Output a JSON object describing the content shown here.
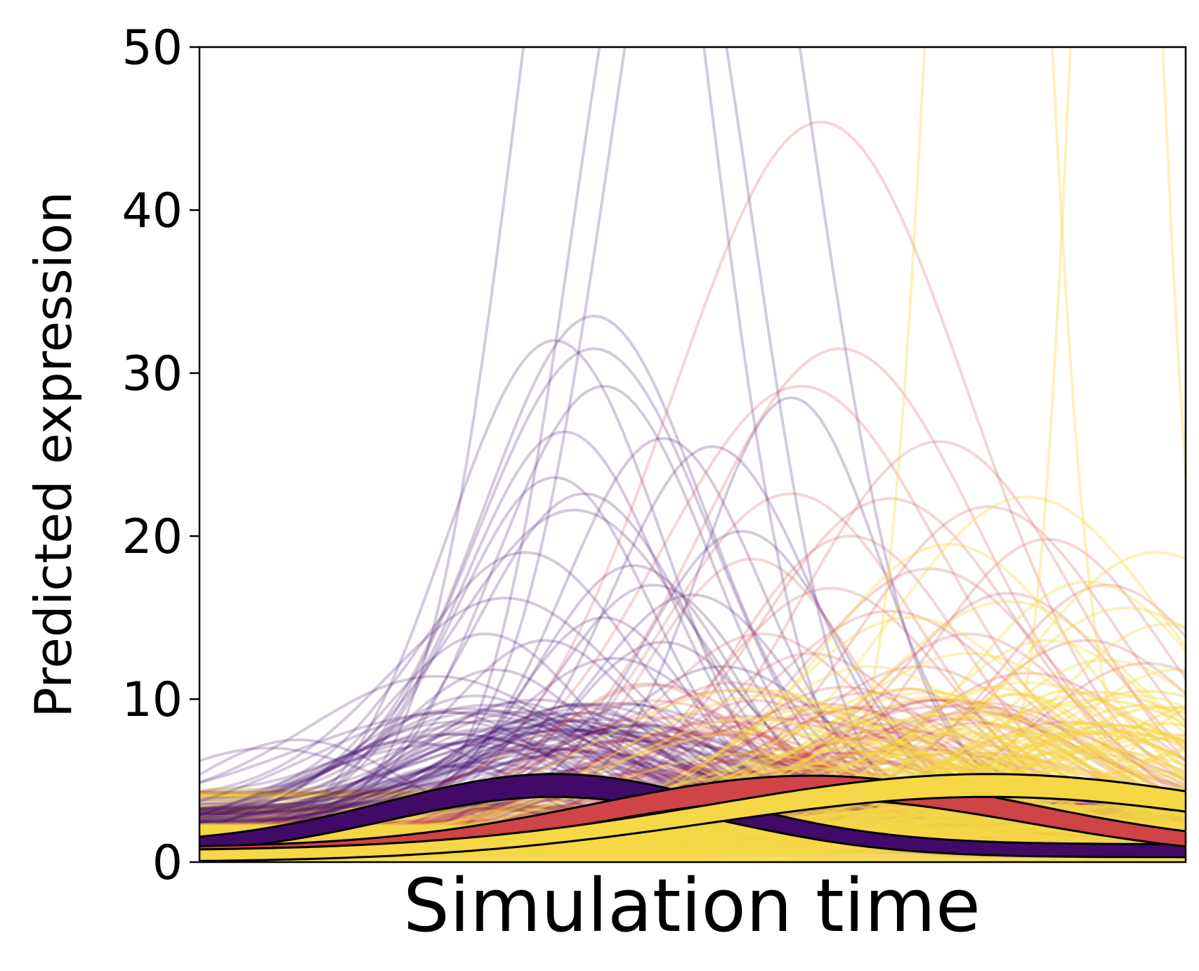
{
  "chart_data": {
    "type": "line",
    "xlabel": "Simulation time",
    "ylabel": "Predicted expression",
    "xlim": [
      0,
      1
    ],
    "ylim": [
      0,
      50
    ],
    "yticks": [
      "0",
      "10",
      "20",
      "30",
      "40",
      "50"
    ],
    "xticks": [],
    "grid": false,
    "legend": "none",
    "colors": {
      "purple": "#420a68",
      "red": "#cf4446",
      "yellow": "#f6d746"
    },
    "background_series": [
      {
        "group": "purple",
        "peaks": [
          [
            0.36,
            32.0,
            0.11
          ],
          [
            0.4,
            33.5,
            0.11
          ],
          [
            0.4,
            31.5,
            0.12
          ],
          [
            0.41,
            29.2,
            0.11
          ],
          [
            0.37,
            26.4,
            0.1
          ],
          [
            0.36,
            23.6,
            0.1
          ],
          [
            0.39,
            22.6,
            0.11
          ],
          [
            0.38,
            21.6,
            0.12
          ],
          [
            0.33,
            19.0,
            0.11
          ],
          [
            0.47,
            26.0,
            0.1
          ],
          [
            0.52,
            25.5,
            0.1
          ],
          [
            0.6,
            28.5,
            0.09
          ],
          [
            0.31,
            16.2,
            0.12
          ],
          [
            0.44,
            18.2,
            0.1
          ],
          [
            0.46,
            17.0,
            0.1
          ],
          [
            0.5,
            16.4,
            0.1
          ],
          [
            0.24,
            11.4,
            0.13
          ],
          [
            0.1,
            7.5,
            0.11
          ],
          [
            0.07,
            7.0,
            0.1
          ],
          [
            0.29,
            14.0,
            0.1
          ],
          [
            0.35,
            13.6,
            0.09
          ],
          [
            0.42,
            12.5,
            0.1
          ],
          [
            0.47,
            13.5,
            0.1
          ],
          [
            0.55,
            20.3,
            0.1
          ],
          [
            0.53,
            12.0,
            0.1
          ],
          [
            0.28,
            10.2,
            0.1
          ],
          [
            0.32,
            9.8,
            0.09
          ],
          [
            0.38,
            9.6,
            0.1
          ],
          [
            0.26,
            8.6,
            0.1
          ],
          [
            0.45,
            8.4,
            0.11
          ],
          [
            0.21,
            7.4,
            0.1
          ],
          [
            0.34,
            7.2,
            0.1
          ],
          [
            0.3,
            11.8,
            0.09
          ],
          [
            0.41,
            15.0,
            0.09
          ],
          [
            0.25,
            9.2,
            0.11
          ],
          [
            0.36,
            6.5,
            0.12
          ]
        ]
      },
      {
        "group": "purple_tall",
        "peaks": [
          [
            0.42,
            78,
            0.095
          ],
          [
            0.47,
            64,
            0.09
          ],
          [
            0.52,
            72,
            0.1
          ]
        ]
      },
      {
        "group": "red",
        "peaks": [
          [
            0.63,
            45.4,
            0.15
          ],
          [
            0.65,
            31.5,
            0.14
          ],
          [
            0.61,
            29.2,
            0.14
          ],
          [
            0.75,
            25.8,
            0.14
          ],
          [
            0.6,
            22.6,
            0.13
          ],
          [
            0.7,
            22.3,
            0.13
          ],
          [
            0.8,
            21.8,
            0.13
          ],
          [
            0.86,
            19.8,
            0.12
          ],
          [
            0.66,
            20.0,
            0.12
          ],
          [
            0.74,
            18.0,
            0.12
          ],
          [
            0.56,
            18.6,
            0.11
          ],
          [
            0.64,
            16.8,
            0.12
          ],
          [
            0.82,
            16.5,
            0.12
          ],
          [
            0.92,
            17.0,
            0.11
          ],
          [
            0.7,
            15.4,
            0.12
          ],
          [
            0.57,
            14.0,
            0.11
          ],
          [
            0.78,
            14.0,
            0.12
          ],
          [
            0.9,
            13.6,
            0.12
          ],
          [
            0.62,
            12.8,
            0.11
          ],
          [
            0.73,
            12.0,
            0.12
          ],
          [
            0.84,
            11.6,
            0.12
          ],
          [
            0.54,
            11.0,
            0.11
          ],
          [
            0.68,
            10.4,
            0.12
          ],
          [
            0.96,
            12.2,
            0.11
          ],
          [
            0.8,
            9.5,
            0.12
          ],
          [
            0.6,
            8.8,
            0.12
          ],
          [
            0.88,
            8.6,
            0.12
          ],
          [
            0.72,
            8.0,
            0.12
          ]
        ]
      },
      {
        "group": "yellow",
        "peaks": [
          [
            0.84,
            22.4,
            0.14
          ],
          [
            0.97,
            19.0,
            0.13
          ],
          [
            0.76,
            19.5,
            0.13
          ],
          [
            0.9,
            17.2,
            0.12
          ],
          [
            0.82,
            16.0,
            0.13
          ],
          [
            0.94,
            15.6,
            0.12
          ],
          [
            0.72,
            15.0,
            0.13
          ],
          [
            0.98,
            14.6,
            0.11
          ],
          [
            0.86,
            13.6,
            0.12
          ],
          [
            0.78,
            12.8,
            0.13
          ],
          [
            0.92,
            12.4,
            0.12
          ],
          [
            0.68,
            12.0,
            0.12
          ],
          [
            0.99,
            11.8,
            0.11
          ],
          [
            0.84,
            11.0,
            0.13
          ],
          [
            0.74,
            10.4,
            0.12
          ],
          [
            0.95,
            10.2,
            0.12
          ],
          [
            0.88,
            9.6,
            0.12
          ],
          [
            0.8,
            9.0,
            0.13
          ],
          [
            0.66,
            8.6,
            0.12
          ],
          [
            0.93,
            8.4,
            0.12
          ],
          [
            0.76,
            7.8,
            0.13
          ],
          [
            0.98,
            7.6,
            0.11
          ],
          [
            0.86,
            7.2,
            0.13
          ],
          [
            0.7,
            6.8,
            0.12
          ],
          [
            0.9,
            6.4,
            0.13
          ],
          [
            0.82,
            6.0,
            0.13
          ],
          [
            0.62,
            5.8,
            0.12
          ],
          [
            0.96,
            5.6,
            0.12
          ],
          [
            0.78,
            5.2,
            0.13
          ],
          [
            0.88,
            4.8,
            0.13
          ]
        ]
      },
      {
        "group": "yellow_tall",
        "peaks": [
          [
            0.8,
            110,
            0.05
          ],
          [
            0.93,
            95,
            0.04
          ]
        ]
      }
    ],
    "highlighted_series": [
      {
        "group": "purple",
        "peak_x": 0.36,
        "peak_y": 4.7,
        "width": 0.17,
        "base": 0.5,
        "thickness": 1.0
      },
      {
        "group": "red",
        "peak_x": 0.62,
        "peak_y": 4.6,
        "width": 0.22,
        "base": 0.3,
        "thickness": 1.0
      },
      {
        "group": "yellow",
        "peak_x": 0.8,
        "peak_y": 4.7,
        "width": 0.28,
        "base": 0.1,
        "thickness": 1.0
      }
    ]
  }
}
